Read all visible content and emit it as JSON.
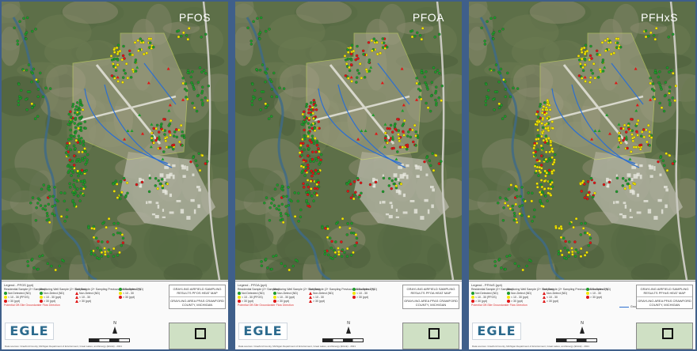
{
  "panels": [
    {
      "id": "pfos",
      "title": "PFOS",
      "legend_head": "Legend - PFOS (ppt)",
      "tb": [
        "GRAYLING AIRFIELD SAMPLING RESULTS PFOS HEAT MAP",
        "GRAYLING AREA PFAS CRAWFORD COUNTY, MICHIGAN"
      ]
    },
    {
      "id": "pfoa",
      "title": "PFOA",
      "legend_head": "Legend - PFOA (ppt)",
      "tb": [
        "GRAYLING AIRFIELD SAMPLING RESULTS PFOA HEAT MAP",
        "GRAYLING AREA PFAS CRAWFORD COUNTY, MICHIGAN"
      ]
    },
    {
      "id": "pfhxs",
      "title": "PFHxS",
      "legend_head": "Legend - PFHxS (ppt)",
      "tb": [
        "GRAYLING AIRFIELD SAMPLING RESULTS PFHxS HEAT MAP",
        "GRAYLING AREA PFAS CRAWFORD COUNTY, MICHIGAN"
      ]
    }
  ],
  "legend": {
    "col1_title": "Residential Sample (2+ Samples)",
    "col1_items": [
      "Not Detected (ND)",
      "< 10 - 30 (PFOS)",
      "> 30 (ppt)"
    ],
    "col1_extra": "Potential Off-Site Groundwater Flow Direction",
    "col2_title": "Monitoring Well Sample (2+ Samples)",
    "col2_items": [
      "Non-Detect (ND)",
      "< 10 - 30 (ppt)",
      "> 30 (ppt)"
    ],
    "col3_title": "Soil Sample (2+ Sampling Previous Soil Samples 2+)",
    "col3_items": [
      "Non-Detect (ND)",
      "< 10 - 30",
      "> 30 (ppt)"
    ],
    "col4_items": [
      "Non-Detect (ND)",
      "< 10 - 30",
      "> 30 (ppt)"
    ],
    "flow_label": "Groundwater Flow Direction"
  },
  "logo": "EGLE",
  "north": "N",
  "footer": "Data sources: Crawford County, Michigan Department of Environment, Great Lakes, and Energy (EGLE) - 2021",
  "colors": {
    "nd": "#1f9b2b",
    "low": "#f2e600",
    "high": "#e01515",
    "flow": "#2d6fd0",
    "frame": "#3f5f8a"
  },
  "legend_title_short": "Legend",
  "icons": [
    "north-arrow-icon",
    "scale-bar-icon"
  ]
}
